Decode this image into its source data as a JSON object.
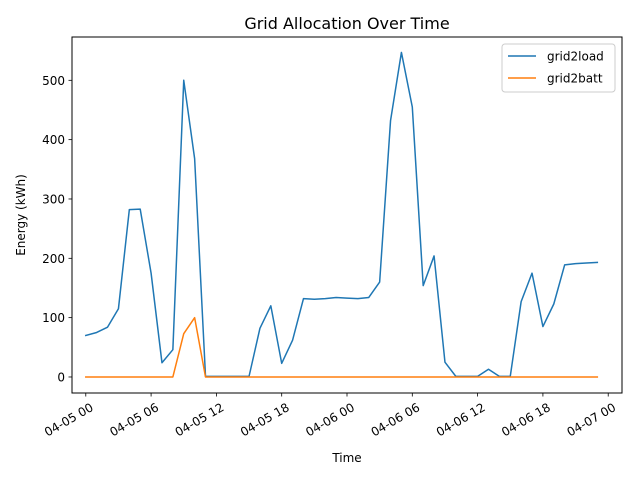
{
  "chart_data": {
    "type": "line",
    "title": "Grid Allocation Over Time",
    "xlabel": "Time",
    "ylabel": "Energy (kWh)",
    "xlim": [
      "2024-04-04T22:44",
      "2024-04-07T01:16"
    ],
    "ylim": [
      -27,
      573
    ],
    "x_ticks": [
      {
        "t": "2024-04-05T00:00",
        "label": "04-05 00"
      },
      {
        "t": "2024-04-05T06:00",
        "label": "04-05 06"
      },
      {
        "t": "2024-04-05T12:00",
        "label": "04-05 12"
      },
      {
        "t": "2024-04-05T18:00",
        "label": "04-05 18"
      },
      {
        "t": "2024-04-06T00:00",
        "label": "04-06 00"
      },
      {
        "t": "2024-04-06T06:00",
        "label": "04-06 06"
      },
      {
        "t": "2024-04-06T12:00",
        "label": "04-06 12"
      },
      {
        "t": "2024-04-06T18:00",
        "label": "04-06 18"
      },
      {
        "t": "2024-04-07T00:00",
        "label": "04-07 00"
      }
    ],
    "y_ticks": [
      0,
      100,
      200,
      300,
      400,
      500
    ],
    "grid": false,
    "legend_position": "top-right",
    "x": [
      "2024-04-05T00:00",
      "2024-04-05T01:00",
      "2024-04-05T02:00",
      "2024-04-05T03:00",
      "2024-04-05T04:00",
      "2024-04-05T05:00",
      "2024-04-05T06:00",
      "2024-04-05T07:00",
      "2024-04-05T08:00",
      "2024-04-05T09:00",
      "2024-04-05T10:00",
      "2024-04-05T11:00",
      "2024-04-05T12:00",
      "2024-04-05T13:00",
      "2024-04-05T14:00",
      "2024-04-05T15:00",
      "2024-04-05T16:00",
      "2024-04-05T17:00",
      "2024-04-05T18:00",
      "2024-04-05T19:00",
      "2024-04-05T20:00",
      "2024-04-05T21:00",
      "2024-04-05T22:00",
      "2024-04-05T23:00",
      "2024-04-06T00:00",
      "2024-04-06T01:00",
      "2024-04-06T02:00",
      "2024-04-06T03:00",
      "2024-04-06T04:00",
      "2024-04-06T05:00",
      "2024-04-06T06:00",
      "2024-04-06T07:00",
      "2024-04-06T08:00",
      "2024-04-06T09:00",
      "2024-04-06T10:00",
      "2024-04-06T11:00",
      "2024-04-06T12:00",
      "2024-04-06T13:00",
      "2024-04-06T14:00",
      "2024-04-06T15:00",
      "2024-04-06T16:00",
      "2024-04-06T17:00",
      "2024-04-06T18:00",
      "2024-04-06T19:00",
      "2024-04-06T20:00",
      "2024-04-06T21:00",
      "2024-04-06T22:00",
      "2024-04-06T23:00"
    ],
    "series": [
      {
        "name": "grid2load",
        "color": "#1f77b4",
        "values": [
          70,
          75,
          84,
          115,
          282,
          283,
          175,
          24,
          46,
          500,
          368,
          1,
          1,
          1,
          1,
          1,
          82,
          120,
          23,
          62,
          132,
          131,
          132,
          134,
          133,
          132,
          134,
          160,
          432,
          547,
          455,
          154,
          204,
          25,
          1,
          1,
          1,
          13,
          1,
          1,
          127,
          175,
          85,
          123,
          189,
          191,
          192,
          193
        ]
      },
      {
        "name": "grid2batt",
        "color": "#ff7f0e",
        "values": [
          0,
          0,
          0,
          0,
          0,
          0,
          0,
          0,
          0,
          73,
          100,
          0,
          0,
          0,
          0,
          0,
          0,
          0,
          0,
          0,
          0,
          0,
          0,
          0,
          0,
          0,
          0,
          0,
          0,
          0,
          0,
          0,
          0,
          0,
          0,
          0,
          0,
          0,
          0,
          0,
          0,
          0,
          0,
          0,
          0,
          0,
          0,
          0
        ]
      }
    ]
  }
}
